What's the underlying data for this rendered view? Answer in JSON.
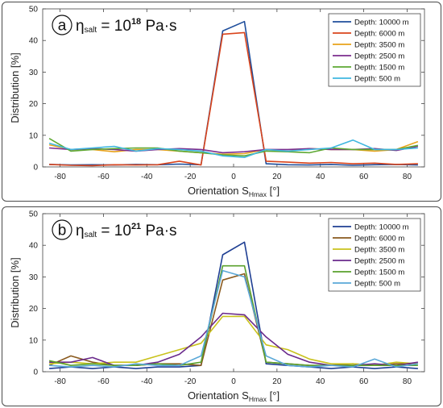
{
  "chart_data": [
    {
      "type": "line",
      "panel_label": "a",
      "annotation": {
        "symbol": "η",
        "sub": "salt",
        "rest": " = 10",
        "sup": "18",
        "unit": " Pa·s"
      },
      "xlabel": {
        "main": "Orientation S",
        "sub": "Hmax",
        "unit": " [°]"
      },
      "ylabel": "Distribution [%]",
      "xlim": [
        -88,
        88
      ],
      "ylim": [
        0,
        50
      ],
      "xticks": [
        -80,
        -60,
        -40,
        -20,
        0,
        20,
        40,
        60,
        80
      ],
      "yticks": [
        0,
        10,
        20,
        30,
        40,
        50
      ],
      "legend_position": "top-right",
      "x": [
        -85,
        -75,
        -65,
        -55,
        -45,
        -35,
        -25,
        -15,
        -5,
        5,
        15,
        25,
        35,
        45,
        55,
        65,
        75,
        85
      ],
      "series": [
        {
          "name": "Depth: 10000 m",
          "color": "#1f4e9c",
          "values": [
            0.8,
            0.6,
            0.7,
            0.6,
            0.8,
            0.7,
            0.9,
            0.7,
            43,
            46,
            1.0,
            0.7,
            0.6,
            0.8,
            0.5,
            0.7,
            0.8,
            0.6
          ]
        },
        {
          "name": "Depth: 6000 m",
          "color": "#d9441c",
          "values": [
            0.8,
            0.5,
            0.4,
            0.7,
            0.6,
            0.7,
            1.8,
            0.6,
            42,
            42.5,
            1.8,
            1.5,
            1.2,
            1.4,
            1.0,
            1.2,
            0.8,
            1.0
          ]
        },
        {
          "name": "Depth: 3500 m",
          "color": "#e8a21a",
          "values": [
            7.0,
            5.5,
            5.5,
            4.8,
            5.5,
            5.5,
            5.0,
            4.5,
            4.0,
            4.2,
            5.5,
            5.0,
            5.8,
            5.5,
            5.5,
            5.0,
            5.5,
            8.0
          ]
        },
        {
          "name": "Depth: 2500 m",
          "color": "#7b2d8e",
          "values": [
            6.0,
            5.5,
            5.8,
            5.5,
            5.0,
            5.5,
            5.8,
            5.5,
            4.5,
            4.8,
            5.5,
            5.5,
            5.8,
            5.5,
            5.5,
            5.8,
            5.2,
            6.5
          ]
        },
        {
          "name": "Depth: 1500 m",
          "color": "#5da832",
          "values": [
            9.0,
            5.0,
            5.5,
            5.8,
            6.0,
            6.0,
            5.0,
            4.5,
            3.8,
            3.5,
            5.0,
            4.8,
            4.5,
            6.0,
            5.5,
            5.5,
            5.5,
            6.8
          ]
        },
        {
          "name": "Depth: 500 m",
          "color": "#3fb7e0",
          "values": [
            7.5,
            5.5,
            6.0,
            6.5,
            5.0,
            5.8,
            5.5,
            5.0,
            3.5,
            3.0,
            5.5,
            5.0,
            5.5,
            6.0,
            8.5,
            5.5,
            5.5,
            6.0
          ]
        }
      ]
    },
    {
      "type": "line",
      "panel_label": "b",
      "annotation": {
        "symbol": "η",
        "sub": "salt",
        "rest": " = 10",
        "sup": "21",
        "unit": " Pa·s"
      },
      "xlabel": {
        "main": "Orientation S",
        "sub": "Hmax",
        "unit": " [°]"
      },
      "ylabel": "Distribution [%]",
      "xlim": [
        -88,
        88
      ],
      "ylim": [
        0,
        50
      ],
      "xticks": [
        -80,
        -60,
        -40,
        -20,
        0,
        20,
        40,
        60,
        80
      ],
      "yticks": [
        0,
        10,
        20,
        30,
        40,
        50
      ],
      "legend_position": "top-right",
      "x": [
        -85,
        -75,
        -65,
        -55,
        -45,
        -35,
        -25,
        -15,
        -5,
        5,
        15,
        25,
        35,
        45,
        55,
        65,
        75,
        85
      ],
      "series": [
        {
          "name": "Depth: 10000 m",
          "color": "#1f3f93",
          "values": [
            1.0,
            1.5,
            1.0,
            1.5,
            1.0,
            1.5,
            1.5,
            2.0,
            37,
            41,
            2.5,
            2.0,
            1.5,
            1.0,
            1.5,
            1.0,
            1.5,
            1.0
          ]
        },
        {
          "name": "Depth: 6000 m",
          "color": "#8a5a1e",
          "values": [
            2.0,
            5.0,
            3.0,
            2.0,
            2.0,
            2.5,
            2.5,
            2.0,
            29,
            31,
            3.0,
            2.5,
            2.0,
            2.0,
            2.5,
            2.0,
            2.5,
            2.5
          ]
        },
        {
          "name": "Depth: 3500 m",
          "color": "#c9c21c",
          "values": [
            2.5,
            3.0,
            2.5,
            3.0,
            3.0,
            5.0,
            7.0,
            9.0,
            17.5,
            17.5,
            8.5,
            7.0,
            4.0,
            2.5,
            2.5,
            2.0,
            3.0,
            2.5
          ]
        },
        {
          "name": "Depth: 2500 m",
          "color": "#6a2a8c",
          "values": [
            3.0,
            3.0,
            4.5,
            2.0,
            2.0,
            3.0,
            5.5,
            11.0,
            18.5,
            18.0,
            11.0,
            5.5,
            3.0,
            2.0,
            2.0,
            2.5,
            2.0,
            3.0
          ]
        },
        {
          "name": "Depth: 1500 m",
          "color": "#5aa02c",
          "values": [
            3.5,
            2.0,
            2.5,
            2.0,
            2.0,
            2.5,
            2.0,
            3.0,
            33.5,
            33.5,
            3.0,
            2.5,
            2.0,
            2.0,
            2.0,
            2.0,
            2.0,
            2.0
          ]
        },
        {
          "name": "Depth: 500 m",
          "color": "#5aa8d8",
          "values": [
            2.0,
            1.5,
            2.0,
            1.5,
            2.5,
            2.0,
            2.0,
            5.0,
            32,
            30,
            5.0,
            2.0,
            1.5,
            2.0,
            1.5,
            4.0,
            1.5,
            2.5
          ]
        }
      ]
    }
  ]
}
